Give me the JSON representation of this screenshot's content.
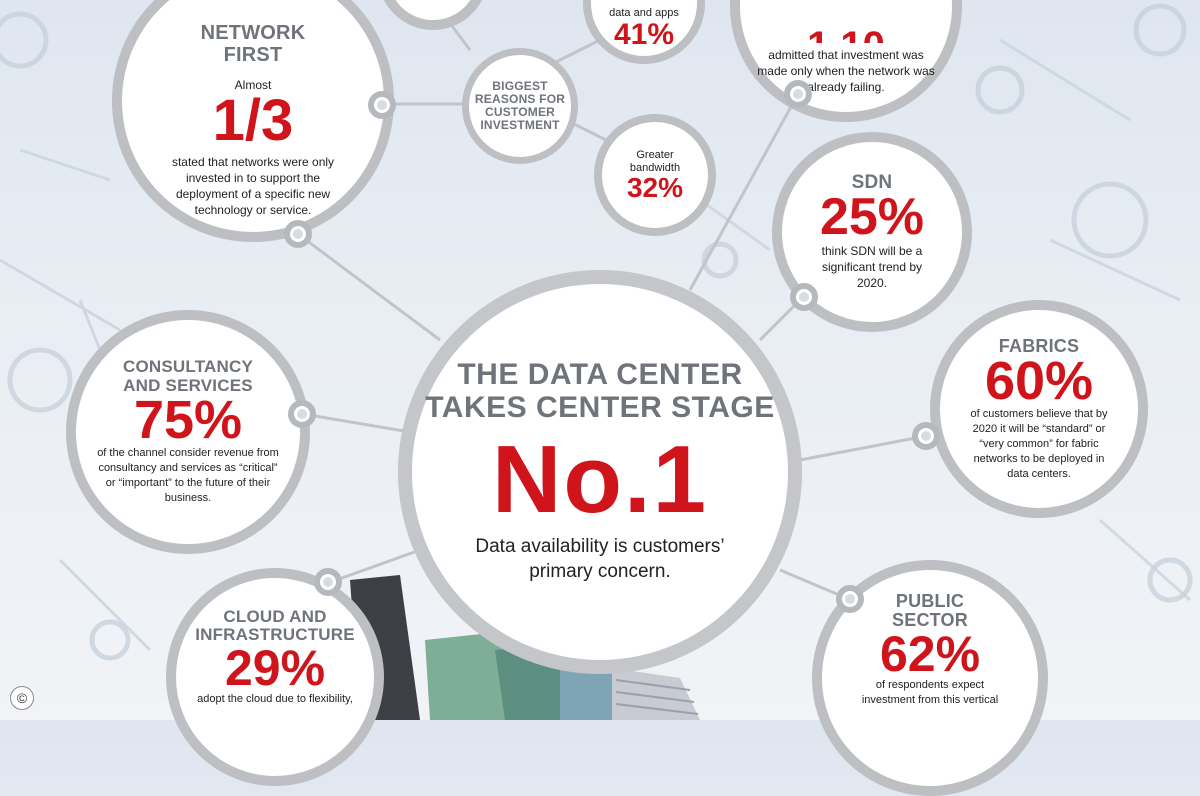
{
  "network_first": {
    "title_line1": "NETWORK",
    "title_line2": "FIRST",
    "pre": "Almost",
    "stat": "1/3",
    "text": "stated that networks were only invested in to support the deployment of a specific new technology or service."
  },
  "data_apps": {
    "text": "data and apps",
    "stat": "41%"
  },
  "failing": {
    "text": "admitted that investment was made only when the network was already failing."
  },
  "reasons": {
    "line1": "BIGGEST",
    "line2": "REASONS FOR",
    "line3": "CUSTOMER",
    "line4": "INVESTMENT"
  },
  "bandwidth": {
    "line1": "Greater",
    "line2": "bandwidth",
    "stat": "32%"
  },
  "sdn": {
    "title": "SDN",
    "stat": "25%",
    "text": "think SDN will be a significant trend by 2020."
  },
  "consultancy": {
    "title_line1": "CONSULTANCY",
    "title_line2": "AND SERVICES",
    "stat": "75%",
    "text": "of the channel consider revenue from consultancy and services as “critical” or “important” to the future of their business."
  },
  "center": {
    "title_line1": "THE DATA CENTER",
    "title_line2": "TAKES CENTER STAGE",
    "stat": "No.1",
    "text_line1": "Data availability is customers’",
    "text_line2": "primary concern."
  },
  "fabrics": {
    "title": "FABRICS",
    "stat": "60%",
    "text": "of customers believe that by 2020 it will be “standard” or “very common” for fabric networks to be deployed in data centers."
  },
  "cloud": {
    "title_line1": "CLOUD AND",
    "title_line2": "INFRASTRUCTURE",
    "stat": "29%",
    "text": "adopt the cloud due to flexibility,"
  },
  "public": {
    "title_line1": "PUBLIC",
    "title_line2": "SECTOR",
    "stat": "62%",
    "text": "of respondents expect investment from this vertical"
  },
  "copyright_symbol": "©",
  "colors": {
    "accent": "#d0141b",
    "caption": "#6f737a",
    "ring": "#bdbfc3"
  }
}
